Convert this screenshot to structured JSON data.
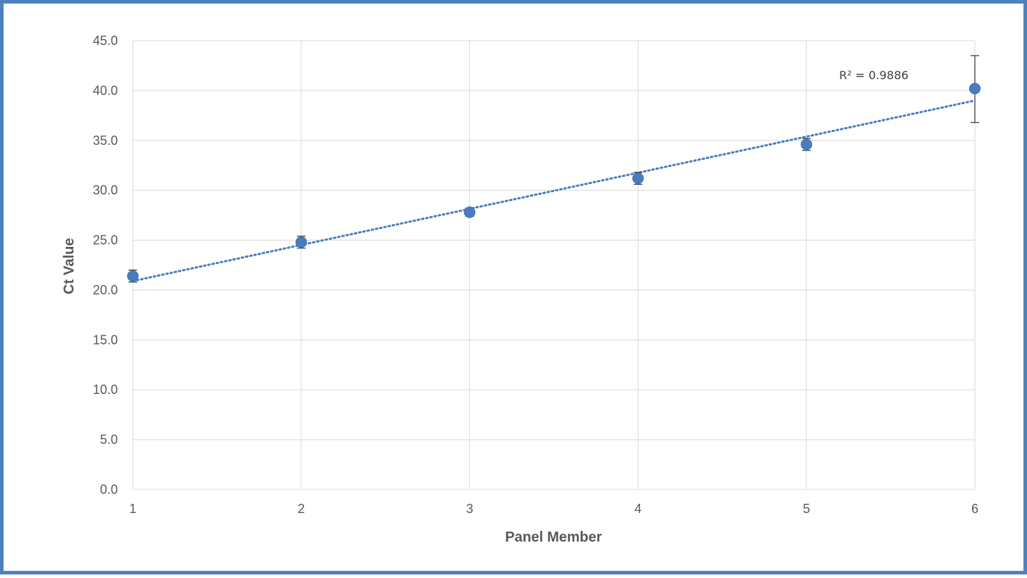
{
  "chart_data": {
    "type": "scatter",
    "title": "",
    "xlabel": "Panel Member",
    "ylabel": "Ct Value",
    "xlim": [
      1,
      6
    ],
    "ylim": [
      0,
      45
    ],
    "x_ticks": [
      "1",
      "2",
      "3",
      "4",
      "5",
      "6"
    ],
    "y_ticks": [
      "0.0",
      "5.0",
      "10.0",
      "15.0",
      "20.0",
      "25.0",
      "30.0",
      "35.0",
      "40.0",
      "45.0"
    ],
    "grid": true,
    "series": [
      {
        "x": [
          1,
          2,
          3,
          4,
          5,
          6
        ],
        "y": [
          21.4,
          24.8,
          27.8,
          31.2,
          34.6,
          40.2
        ],
        "error_low": [
          0.6,
          0.6,
          0.4,
          0.6,
          0.6,
          3.4
        ],
        "error_high": [
          0.6,
          0.6,
          0.4,
          0.6,
          0.6,
          3.3
        ],
        "color": "#4a7cc0"
      }
    ],
    "trendline": {
      "type": "linear",
      "y_at_x_min": 20.9,
      "y_at_x_max": 39.0,
      "label": "R² = 0.9886",
      "color": "#4a7cc0"
    }
  },
  "colors": {
    "frame": "#4f81bd",
    "grid": "#d9d9d9",
    "marker": "#4a7cc0",
    "error_bar": "#404040"
  }
}
